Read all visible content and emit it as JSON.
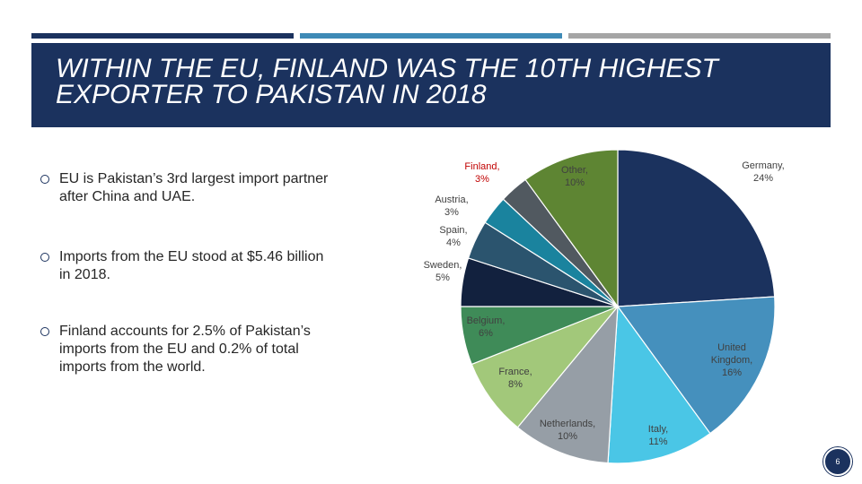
{
  "slide": {
    "title": "WITHIN THE EU, FINLAND WAS THE 10TH HIGHEST EXPORTER TO PAKISTAN IN 2018",
    "page_number": "6",
    "accent_bars": [
      "#1b325e",
      "#3e8ab6",
      "#a5a5a5"
    ]
  },
  "bullets": [
    "EU is Pakistan’s 3rd largest import partner after China and UAE.",
    "Imports from the EU stood at $5.46 billion in 2018.",
    "Finland accounts for 2.5% of Pakistan’s imports from the EU and 0.2% of total imports from the world."
  ],
  "chart_data": {
    "type": "pie",
    "title": "",
    "slices": [
      {
        "label": "Germany",
        "value": 24,
        "display": "24%",
        "color": "#1b325e"
      },
      {
        "label": "United Kingdom",
        "value": 16,
        "display": "16%",
        "color": "#4590bd"
      },
      {
        "label": "Italy",
        "value": 11,
        "display": "11%",
        "color": "#4ac6e6"
      },
      {
        "label": "Netherlands",
        "value": 10,
        "display": "10%",
        "color": "#969ea6"
      },
      {
        "label": "France",
        "value": 8,
        "display": "8%",
        "color": "#a2c87a"
      },
      {
        "label": "Belgium",
        "value": 6,
        "display": "6%",
        "color": "#3f8b58"
      },
      {
        "label": "Sweden",
        "value": 5,
        "display": "5%",
        "color": "#12213e"
      },
      {
        "label": "Spain",
        "value": 4,
        "display": "4%",
        "color": "#2b546e"
      },
      {
        "label": "Austria",
        "value": 3,
        "display": "3%",
        "color": "#1a839e"
      },
      {
        "label": "Finland",
        "value": 3,
        "display": "3%",
        "color": "#515960",
        "highlight": true
      },
      {
        "label": "Other",
        "value": 10,
        "display": "10%",
        "color": "#5e8533"
      }
    ]
  }
}
